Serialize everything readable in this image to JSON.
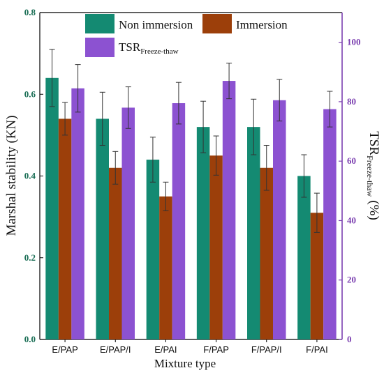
{
  "chart_data": {
    "type": "bar",
    "categories": [
      "E/PAP",
      "E/PAP/I",
      "E/PAI",
      "F/PAP",
      "F/PAP/I",
      "F/PAI"
    ],
    "series": [
      {
        "name": "Non immersion",
        "axis": "left",
        "color": "#148a72",
        "values": [
          0.64,
          0.54,
          0.44,
          0.52,
          0.52,
          0.4
        ],
        "errors": [
          0.07,
          0.065,
          0.055,
          0.063,
          0.068,
          0.052
        ]
      },
      {
        "name": "Immersion",
        "axis": "left",
        "color": "#9c3f0a",
        "values": [
          0.54,
          0.42,
          0.35,
          0.45,
          0.42,
          0.31
        ],
        "errors": [
          0.04,
          0.04,
          0.035,
          0.048,
          0.055,
          0.048
        ]
      },
      {
        "name": "TSR",
        "name_subscript": "Freeze-thaw",
        "axis": "right",
        "color": "#8c52d1",
        "values": [
          84.5,
          78,
          79.5,
          87,
          80.5,
          77.5
        ],
        "errors": [
          8,
          7,
          7,
          6,
          7,
          6
        ]
      }
    ],
    "xlabel": "Mixture type",
    "ylabel": "Marshal stability (KN)",
    "ylabel_right": "TSR",
    "ylabel_right_subscript": "Freeze-thaw",
    "ylabel_right_unit": "(%)",
    "ylim": [
      0.0,
      0.8
    ],
    "ylim_right": [
      0,
      110
    ],
    "yticks": [
      "0.0",
      "0.2",
      "0.4",
      "0.6",
      "0.8"
    ],
    "yticks_right": [
      "0",
      "20",
      "40",
      "60",
      "80",
      "100"
    ],
    "legend_position": "top-center",
    "grid": false
  }
}
